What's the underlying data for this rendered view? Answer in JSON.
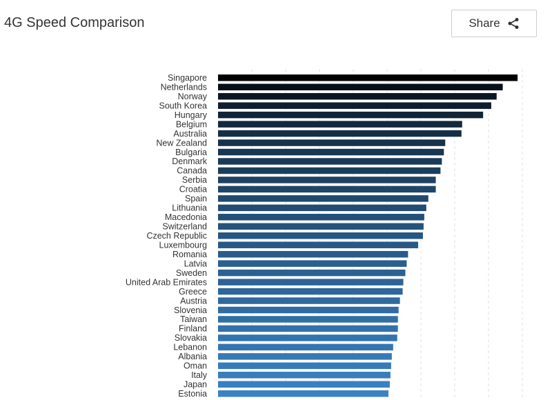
{
  "header": {
    "title": "4G Speed Comparison",
    "share_label": "Share",
    "share_icon": "share-icon"
  },
  "chart_data": {
    "type": "bar",
    "orientation": "horizontal",
    "title": "4G Speed Comparison",
    "xlabel": "",
    "ylabel": "",
    "xlim": [
      0,
      45
    ],
    "grid": true,
    "categories": [
      "Singapore",
      "Netherlands",
      "Norway",
      "South Korea",
      "Hungary",
      "Belgium",
      "Australia",
      "New Zealand",
      "Bulgaria",
      "Denmark",
      "Canada",
      "Serbia",
      "Croatia",
      "Spain",
      "Lithuania",
      "Macedonia",
      "Switzerland",
      "Czech Republic",
      "Luxembourg",
      "Romania",
      "Latvia",
      "Sweden",
      "United Arab Emirates",
      "Greece",
      "Austria",
      "Slovenia",
      "Taiwan",
      "Finland",
      "Slovakia",
      "Lebanon",
      "Albania",
      "Oman",
      "Italy",
      "Japan",
      "Estonia"
    ],
    "values": [
      44.3,
      42.1,
      41.2,
      40.4,
      39.2,
      36.1,
      36.0,
      33.6,
      33.4,
      33.1,
      32.9,
      32.2,
      32.2,
      31.1,
      30.8,
      30.5,
      30.4,
      30.3,
      29.6,
      28.1,
      27.9,
      27.7,
      27.4,
      27.3,
      26.9,
      26.7,
      26.6,
      26.6,
      26.5,
      25.9,
      25.7,
      25.6,
      25.5,
      25.4,
      25.2
    ],
    "color_dark": "#000000",
    "color_light": "#3a82c4"
  }
}
